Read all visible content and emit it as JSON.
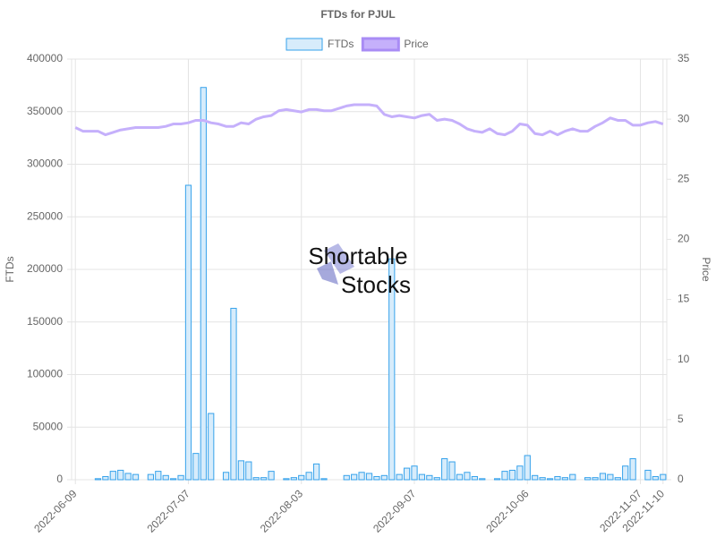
{
  "chart_data": {
    "type": "bar",
    "title": "FTDs for PJUL",
    "categories": [
      "2022-06-09",
      null,
      null,
      null,
      null,
      null,
      null,
      null,
      null,
      null,
      null,
      null,
      null,
      null,
      null,
      "2022-07-07",
      null,
      null,
      null,
      null,
      null,
      null,
      null,
      null,
      null,
      null,
      null,
      null,
      null,
      null,
      "2022-08-03",
      null,
      null,
      null,
      null,
      null,
      null,
      null,
      null,
      null,
      null,
      null,
      null,
      null,
      null,
      "2022-09-07",
      null,
      null,
      null,
      null,
      null,
      null,
      null,
      null,
      null,
      null,
      null,
      null,
      null,
      null,
      "2022-10-06",
      null,
      null,
      null,
      null,
      null,
      null,
      null,
      null,
      null,
      null,
      null,
      null,
      null,
      null,
      "2022-11-07",
      null,
      null,
      "2022-11-10"
    ],
    "series": [
      {
        "name": "FTDs",
        "type": "bar",
        "color": "#36a2eb",
        "fill": "#d7ecfb",
        "values": [
          0,
          0,
          0,
          1000,
          3000,
          8000,
          9000,
          6000,
          5000,
          0,
          5000,
          8000,
          4000,
          1000,
          4000,
          280000,
          25000,
          373000,
          63000,
          0,
          7000,
          163000,
          18000,
          17000,
          2000,
          2000,
          8000,
          0,
          1000,
          2000,
          4000,
          7000,
          15000,
          1000,
          0,
          0,
          4000,
          5000,
          7000,
          6000,
          3000,
          4000,
          210000,
          5000,
          11000,
          13000,
          5000,
          4000,
          2000,
          20000,
          17000,
          5000,
          7000,
          3000,
          1000,
          0,
          1000,
          8000,
          9000,
          13000,
          23000,
          4000,
          2000,
          1000,
          3000,
          2000,
          5000,
          0,
          2000,
          2000,
          6000,
          5000,
          2000,
          13000,
          20000,
          0,
          9000,
          3000,
          5000
        ]
      },
      {
        "name": "Price",
        "type": "line",
        "axis": "y2",
        "color": "#c5b0fb",
        "values": [
          29.3,
          29.0,
          29.0,
          29.0,
          28.7,
          28.9,
          29.1,
          29.2,
          29.3,
          29.3,
          29.3,
          29.3,
          29.4,
          29.6,
          29.6,
          29.7,
          29.9,
          29.9,
          29.7,
          29.6,
          29.4,
          29.4,
          29.7,
          29.6,
          30.0,
          30.2,
          30.3,
          30.7,
          30.8,
          30.7,
          30.6,
          30.8,
          30.8,
          30.7,
          30.7,
          30.9,
          31.1,
          31.2,
          31.2,
          31.2,
          31.1,
          30.4,
          30.2,
          30.3,
          30.2,
          30.1,
          30.3,
          30.4,
          29.9,
          30.0,
          29.9,
          29.6,
          29.2,
          29.0,
          28.9,
          29.2,
          28.8,
          28.7,
          29.0,
          29.6,
          29.5,
          28.8,
          28.7,
          29.0,
          28.7,
          29.0,
          29.2,
          29.0,
          29.0,
          29.4,
          29.7,
          30.1,
          29.9,
          29.9,
          29.5,
          29.5,
          29.7,
          29.8,
          29.6
        ]
      }
    ],
    "ylabel": "FTDs",
    "y2label": "Price",
    "ylim": [
      0,
      400000
    ],
    "yticks": [
      0,
      50000,
      100000,
      150000,
      200000,
      250000,
      300000,
      350000,
      400000
    ],
    "y2lim": [
      0,
      35
    ],
    "y2ticks": [
      0,
      5,
      10,
      15,
      20,
      25,
      30,
      35
    ],
    "grid": true,
    "watermark": [
      "Shortable",
      "Stocks"
    ]
  }
}
